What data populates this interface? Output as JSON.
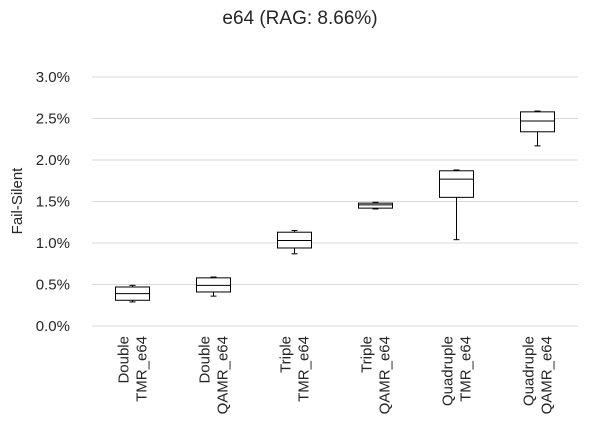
{
  "chart_data": {
    "type": "box",
    "title": "e64 (RAG: 8.66%)",
    "ylabel": "Fail-Silent",
    "xlabel": "",
    "ylim": [
      0,
      0.03
    ],
    "yticks": [
      0,
      0.005,
      0.01,
      0.015,
      0.02,
      0.025,
      0.03
    ],
    "ytick_labels": [
      "0.0%",
      "0.5%",
      "1.0%",
      "1.5%",
      "2.0%",
      "2.5%",
      "3.0%"
    ],
    "grid": true,
    "categories": [
      [
        "Double",
        "TMR_e64"
      ],
      [
        "Double",
        "QAMR_e64"
      ],
      [
        "Triple",
        "TMR_e64"
      ],
      [
        "Triple",
        "QAMR_e64"
      ],
      [
        "Quadruple",
        "TMR_e64"
      ],
      [
        "Quadruple",
        "QAMR_e64"
      ]
    ],
    "boxes": [
      {
        "min": 0.0029,
        "q1": 0.0031,
        "median": 0.0039,
        "q3": 0.0047,
        "max": 0.0049
      },
      {
        "min": 0.0036,
        "q1": 0.0041,
        "median": 0.0049,
        "q3": 0.0058,
        "max": 0.0059
      },
      {
        "min": 0.0087,
        "q1": 0.0094,
        "median": 0.0103,
        "q3": 0.0113,
        "max": 0.0115
      },
      {
        "min": 0.0141,
        "q1": 0.0142,
        "median": 0.0146,
        "q3": 0.0148,
        "max": 0.0149
      },
      {
        "min": 0.0104,
        "q1": 0.0155,
        "median": 0.0177,
        "q3": 0.0187,
        "max": 0.0188
      },
      {
        "min": 0.0217,
        "q1": 0.0234,
        "median": 0.0247,
        "q3": 0.0258,
        "max": 0.0259
      }
    ]
  }
}
